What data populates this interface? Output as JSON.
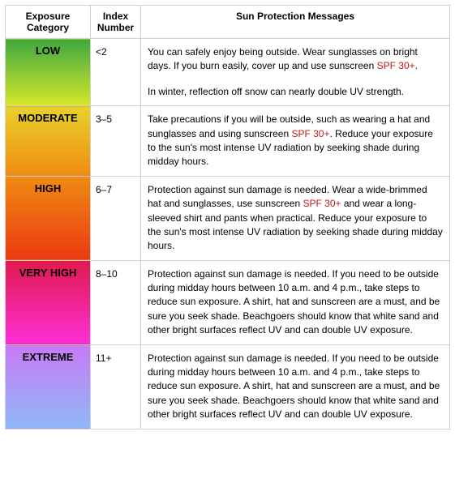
{
  "headers": {
    "category": "Exposure Category",
    "index": "Index Number",
    "message": "Sun Protection Messages"
  },
  "spf_label": "SPF 30+",
  "rows": [
    {
      "label": "LOW",
      "index": "<2",
      "gradient_top": "#3fa83f",
      "gradient_bottom": "#d6e82a",
      "message_html": "<p>You can safely enjoy being outside. Wear sunglasses on bright days. If you burn easily, cover up and use sunscreen <span class=\"spf\">SPF 30+</span>.</p><p>In winter, reflection off snow can nearly double UV strength.</p>"
    },
    {
      "label": "MODERATE",
      "index": "3–5",
      "gradient_top": "#e8d22a",
      "gradient_bottom": "#f08a12",
      "message_html": "<p>Take precautions if you will be outside, such as wearing a hat and sunglasses and using sunscreen <span class=\"spf\">SPF 30+</span>. Reduce your exposure to the sun's most intense UV radiation by seeking shade during midday hours.</p>"
    },
    {
      "label": "HIGH",
      "index": "6–7",
      "gradient_top": "#f08a12",
      "gradient_bottom": "#ea3a12",
      "message_html": "<p>Protection against sun damage is needed. Wear a wide-brimmed hat and sunglasses, use sunscreen <span class=\"spf\">SPF 30+</span> and wear a long-sleeved shirt and pants when practical. Reduce your exposure to the sun's most intense UV radiation by seeking shade during midday hours.</p>"
    },
    {
      "label": "VERY HIGH",
      "index": "8–10",
      "gradient_top": "#e01a4f",
      "gradient_bottom": "#ff2fd6",
      "message_html": "<p>Protection against sun damage is needed. If you need to be outside during midday hours between 10 a.m. and 4 p.m., take steps to reduce sun exposure. A shirt, hat and sunscreen are a must, and be sure you seek shade. Beachgoers should know that white sand and other bright surfaces reflect UV and can double UV exposure.</p>"
    },
    {
      "label": "EXTREME",
      "index": "11+",
      "gradient_top": "#c87af5",
      "gradient_bottom": "#8fb8f7",
      "message_html": "<p>Protection against sun damage is needed. If you need to be outside during midday hours between 10 a.m. and 4 p.m., take steps to reduce sun exposure. A shirt, hat and sunscreen are a must, and be sure you seek shade. Beachgoers should know that white sand and other bright surfaces reflect UV and can double UV exposure.</p>"
    }
  ]
}
